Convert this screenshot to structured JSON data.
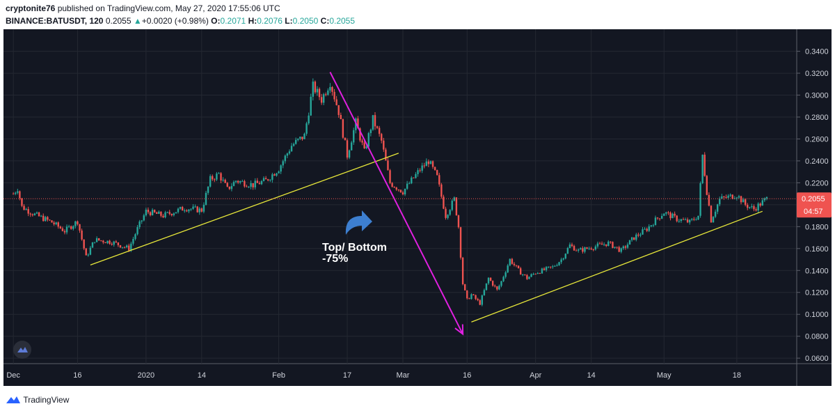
{
  "header": {
    "publisher": "cryptonite76",
    "published_text": " published on TradingView.com, May 27, 2020 17:55:06 UTC",
    "symbol": "BINANCE:BATUSDT, 120",
    "last": "0.2055",
    "change": "+0.0020 (+0.98%)",
    "o_label": "O:",
    "o_value": "0.2071",
    "h_label": "H:",
    "h_value": "0.2076",
    "l_label": "L:",
    "l_value": "0.2050",
    "c_label": "C:",
    "c_value": "0.2055"
  },
  "footer": {
    "brand": "TradingView"
  },
  "colors": {
    "background": "#131722",
    "up": "#26a69a",
    "down": "#ef5350",
    "trendline": "#e8e83a",
    "arrow_line": "#e020e0",
    "annotation_arrow": "#3d7fd0",
    "price_badge": "#ef5350"
  },
  "chart_data": {
    "type": "candlestick",
    "symbol": "BINANCE:BATUSDT",
    "interval": "120",
    "ylim": [
      0.055,
      0.355
    ],
    "y_ticks": [
      "0.3400",
      "0.3200",
      "0.3000",
      "0.2800",
      "0.2600",
      "0.2400",
      "0.2200",
      "0.2000",
      "0.1800",
      "0.1600",
      "0.1400",
      "0.1200",
      "0.1000",
      "0.0800",
      "0.0600"
    ],
    "x_ticks": [
      {
        "label": "Dec",
        "day": 0
      },
      {
        "label": "16",
        "day": 15
      },
      {
        "label": "2020",
        "day": 31
      },
      {
        "label": "14",
        "day": 44
      },
      {
        "label": "Feb",
        "day": 62
      },
      {
        "label": "17",
        "day": 78
      },
      {
        "label": "Mar",
        "day": 91
      },
      {
        "label": "16",
        "day": 106
      },
      {
        "label": "Apr",
        "day": 122
      },
      {
        "label": "14",
        "day": 135
      },
      {
        "label": "May",
        "day": 152
      },
      {
        "label": "18",
        "day": 169
      }
    ],
    "last_price": {
      "value": 0.2055,
      "label": "0.2055",
      "countdown": "04:57"
    },
    "price_path": [
      {
        "day": 0,
        "price": 0.21
      },
      {
        "day": 1,
        "price": 0.215
      },
      {
        "day": 2,
        "price": 0.198
      },
      {
        "day": 5,
        "price": 0.191
      },
      {
        "day": 9,
        "price": 0.184
      },
      {
        "day": 12,
        "price": 0.176
      },
      {
        "day": 15,
        "price": 0.185
      },
      {
        "day": 17,
        "price": 0.152
      },
      {
        "day": 19,
        "price": 0.168
      },
      {
        "day": 23,
        "price": 0.166
      },
      {
        "day": 27,
        "price": 0.16
      },
      {
        "day": 29,
        "price": 0.178
      },
      {
        "day": 31,
        "price": 0.194
      },
      {
        "day": 35,
        "price": 0.19
      },
      {
        "day": 40,
        "price": 0.197
      },
      {
        "day": 44,
        "price": 0.195
      },
      {
        "day": 46,
        "price": 0.223
      },
      {
        "day": 48,
        "price": 0.228
      },
      {
        "day": 50,
        "price": 0.214
      },
      {
        "day": 52,
        "price": 0.222
      },
      {
        "day": 56,
        "price": 0.218
      },
      {
        "day": 59,
        "price": 0.222
      },
      {
        "day": 62,
        "price": 0.233
      },
      {
        "day": 65,
        "price": 0.254
      },
      {
        "day": 68,
        "price": 0.263
      },
      {
        "day": 70,
        "price": 0.308
      },
      {
        "day": 72,
        "price": 0.296
      },
      {
        "day": 74,
        "price": 0.312
      },
      {
        "day": 76,
        "price": 0.285
      },
      {
        "day": 78,
        "price": 0.245
      },
      {
        "day": 80,
        "price": 0.275
      },
      {
        "day": 82,
        "price": 0.248
      },
      {
        "day": 84,
        "price": 0.278
      },
      {
        "day": 86,
        "price": 0.258
      },
      {
        "day": 88,
        "price": 0.22
      },
      {
        "day": 91,
        "price": 0.212
      },
      {
        "day": 95,
        "price": 0.232
      },
      {
        "day": 97,
        "price": 0.24
      },
      {
        "day": 99,
        "price": 0.225
      },
      {
        "day": 101,
        "price": 0.19
      },
      {
        "day": 103,
        "price": 0.205
      },
      {
        "day": 104,
        "price": 0.18
      },
      {
        "day": 105,
        "price": 0.128
      },
      {
        "day": 106,
        "price": 0.113
      },
      {
        "day": 107,
        "price": 0.118
      },
      {
        "day": 109,
        "price": 0.11
      },
      {
        "day": 111,
        "price": 0.133
      },
      {
        "day": 113,
        "price": 0.122
      },
      {
        "day": 114,
        "price": 0.13
      },
      {
        "day": 116,
        "price": 0.15
      },
      {
        "day": 118,
        "price": 0.14
      },
      {
        "day": 120,
        "price": 0.133
      },
      {
        "day": 122,
        "price": 0.138
      },
      {
        "day": 126,
        "price": 0.143
      },
      {
        "day": 128,
        "price": 0.15
      },
      {
        "day": 130,
        "price": 0.163
      },
      {
        "day": 132,
        "price": 0.158
      },
      {
        "day": 135,
        "price": 0.161
      },
      {
        "day": 139,
        "price": 0.165
      },
      {
        "day": 142,
        "price": 0.158
      },
      {
        "day": 145,
        "price": 0.17
      },
      {
        "day": 148,
        "price": 0.178
      },
      {
        "day": 150,
        "price": 0.186
      },
      {
        "day": 152,
        "price": 0.193
      },
      {
        "day": 155,
        "price": 0.187
      },
      {
        "day": 158,
        "price": 0.184
      },
      {
        "day": 160,
        "price": 0.19
      },
      {
        "day": 161,
        "price": 0.245
      },
      {
        "day": 162,
        "price": 0.212
      },
      {
        "day": 163,
        "price": 0.186
      },
      {
        "day": 165,
        "price": 0.205
      },
      {
        "day": 167,
        "price": 0.207
      },
      {
        "day": 169,
        "price": 0.209
      },
      {
        "day": 171,
        "price": 0.2
      },
      {
        "day": 173,
        "price": 0.196
      },
      {
        "day": 176,
        "price": 0.2055
      }
    ],
    "support_line_1": [
      {
        "day": 18,
        "price": 0.145
      },
      {
        "day": 90,
        "price": 0.247
      }
    ],
    "support_line_2": [
      {
        "day": 107,
        "price": 0.093
      },
      {
        "day": 175,
        "price": 0.194
      }
    ],
    "decline_arrow": [
      {
        "day": 74,
        "price": 0.321
      },
      {
        "day": 105,
        "price": 0.082
      }
    ],
    "annotation": {
      "line1": "Top/ Bottom",
      "line2": "-75%"
    }
  }
}
